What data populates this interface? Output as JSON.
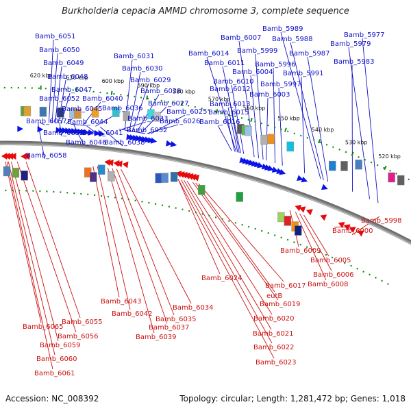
{
  "title": "Burkholderia cepacia AMMD chromosome 3, complete sequence",
  "footer": {
    "accession": "Accession: NC_008392",
    "summary": "Topology: circular; Length: 1,281,472 bp; Genes: 1,018"
  },
  "colors": {
    "forward_gene": "#0a14e6",
    "reverse_gene": "#e60a0a",
    "backbone": "#8c8c8c",
    "tick_mark": "#118811"
  },
  "ticks": [
    "520 kbp",
    "530 kbp",
    "540 kbp",
    "550 kbp",
    "560 kbp",
    "570 kbp",
    "580 kbp",
    "590 kbp",
    "600 kbp",
    "610 kbp",
    "620 kbp"
  ],
  "genes_top": [
    "Bamb_6051",
    "Bamb_6050",
    "Bamb_6049",
    "Bamb_6048",
    "Bamb_6047",
    "Bamb_6052",
    "Bamb_6045",
    "Bamb_6044",
    "Bamb_6057",
    "Bamb_6053",
    "Bamb_6046",
    "Bamb_6058",
    "Bamb_6040",
    "Bamb_6036",
    "Bamb_6041",
    "Bamb_6038",
    "Bamb_6031",
    "Bamb_6030",
    "Bamb_6029",
    "Bamb_6028",
    "Bamb_6027",
    "Bamb_6033",
    "Bamb_6025",
    "Bamb_6032",
    "Bamb_6026",
    "Bamb_6007",
    "Bamb_6014",
    "Bamb_6011",
    "Bamb_6010",
    "Bamb_6012",
    "Bamb_6013",
    "Bamb_6015",
    "Bamb_6016",
    "Bamb_6004",
    "Bamb_5999",
    "Bamb_5996",
    "Bamb_6003",
    "Bamb_5997",
    "Bamb_5989",
    "Bamb_5988",
    "Bamb_5987",
    "Bamb_5991",
    "Bamb_5977",
    "Bamb_5979",
    "Bamb_5983"
  ],
  "genes_bottom": [
    "Bamb_6065",
    "Bamb_6055",
    "Bamb_6056",
    "Bamb_6059",
    "Bamb_6060",
    "Bamb_6061",
    "Bamb_6043",
    "Bamb_6042",
    "Bamb_6039",
    "Bamb_6037",
    "Bamb_6035",
    "Bamb_6034",
    "Bamb_6024",
    "Bamb_6017",
    "eutB",
    "Bamb_6019",
    "Bamb_6020",
    "Bamb_6021",
    "Bamb_6022",
    "Bamb_6023",
    "Bamb_6009",
    "Bamb_6005",
    "Bamb_6006",
    "Bamb_6008",
    "Bamb_6000",
    "Bamb_5998"
  ]
}
